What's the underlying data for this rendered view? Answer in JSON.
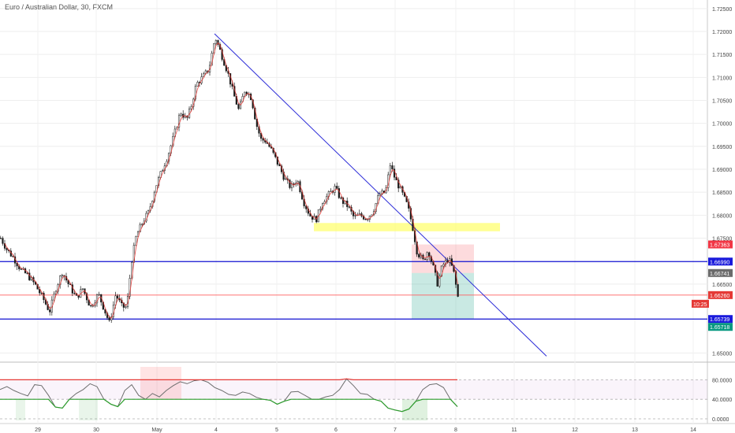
{
  "header": {
    "title": "Euro / Australian Dollar, 30, FXCM"
  },
  "chart_data": {
    "type": "candlestick",
    "symbol": "Euro / Australian Dollar",
    "interval": "30",
    "source": "FXCM",
    "price_axis": {
      "range": [
        1.648,
        1.726
      ],
      "tick_labels": [
        "1.72500",
        "1.72000",
        "1.71500",
        "1.71000",
        "1.70500",
        "1.70000",
        "1.69500",
        "1.69000",
        "1.68500",
        "1.68000",
        "1.67500",
        "1.66500",
        "1.65000"
      ]
    },
    "time_axis": {
      "tick_labels": [
        "29",
        "30",
        "May",
        "4",
        "5",
        "6",
        "7",
        "8",
        "11",
        "12",
        "13",
        "14"
      ]
    },
    "price_path": [
      [
        0,
        1.675
      ],
      [
        8,
        1.6725
      ],
      [
        16,
        1.6708
      ],
      [
        26,
        1.668
      ],
      [
        34,
        1.667
      ],
      [
        44,
        1.6648
      ],
      [
        54,
        1.6618
      ],
      [
        62,
        1.659
      ],
      [
        70,
        1.664
      ],
      [
        78,
        1.6676
      ],
      [
        86,
        1.665
      ],
      [
        96,
        1.662
      ],
      [
        104,
        1.664
      ],
      [
        114,
        1.66
      ],
      [
        124,
        1.6628
      ],
      [
        132,
        1.6592
      ],
      [
        138,
        1.6565
      ],
      [
        146,
        1.6628
      ],
      [
        154,
        1.66
      ],
      [
        160,
        1.66
      ],
      [
        166,
        1.67
      ],
      [
        172,
        1.6755
      ],
      [
        180,
        1.6785
      ],
      [
        188,
        1.6808
      ],
      [
        196,
        1.686
      ],
      [
        204,
        1.6895
      ],
      [
        212,
        1.693
      ],
      [
        220,
        1.6975
      ],
      [
        228,
        1.7025
      ],
      [
        236,
        1.7008
      ],
      [
        242,
        1.704
      ],
      [
        248,
        1.7085
      ],
      [
        256,
        1.71
      ],
      [
        264,
        1.7118
      ],
      [
        272,
        1.7188
      ],
      [
        280,
        1.715
      ],
      [
        288,
        1.711
      ],
      [
        296,
        1.706
      ],
      [
        302,
        1.7028
      ],
      [
        310,
        1.7075
      ],
      [
        318,
        1.7055
      ],
      [
        324,
        1.7
      ],
      [
        330,
        1.6965
      ],
      [
        336,
        1.6962
      ],
      [
        344,
        1.694
      ],
      [
        352,
        1.691
      ],
      [
        360,
        1.688
      ],
      [
        368,
        1.686
      ],
      [
        376,
        1.6878
      ],
      [
        384,
        1.683
      ],
      [
        392,
        1.68
      ],
      [
        400,
        1.679
      ],
      [
        408,
        1.683
      ],
      [
        416,
        1.6845
      ],
      [
        424,
        1.686
      ],
      [
        432,
        1.6832
      ],
      [
        440,
        1.682
      ],
      [
        448,
        1.6795
      ],
      [
        456,
        1.68
      ],
      [
        464,
        1.6793
      ],
      [
        472,
        1.6808
      ],
      [
        480,
        1.6845
      ],
      [
        488,
        1.685
      ],
      [
        494,
        1.691
      ],
      [
        500,
        1.688
      ],
      [
        508,
        1.6852
      ],
      [
        516,
        1.682
      ],
      [
        522,
        1.6778
      ],
      [
        528,
        1.672
      ],
      [
        536,
        1.67
      ],
      [
        542,
        1.6725
      ],
      [
        548,
        1.669
      ],
      [
        554,
        1.665
      ],
      [
        560,
        1.669
      ],
      [
        568,
        1.6705
      ],
      [
        574,
        1.668
      ],
      [
        580,
        1.662
      ]
    ],
    "indicator": {
      "type": "oscillator",
      "range": [
        0,
        100
      ],
      "tick_labels": [
        "80.0000",
        "40.0000",
        "0.0000"
      ],
      "values": [
        60,
        66,
        58,
        52,
        47,
        70,
        68,
        48,
        24,
        22,
        40,
        52,
        60,
        72,
        66,
        40,
        30,
        25,
        58,
        70,
        48,
        40,
        52,
        45,
        58,
        68,
        76,
        72,
        78,
        80,
        75,
        64,
        58,
        50,
        48,
        55,
        52,
        44,
        40,
        38,
        30,
        36,
        55,
        56,
        48,
        40,
        40,
        45,
        48,
        60,
        82,
        68,
        52,
        50,
        40,
        36,
        22,
        18,
        15,
        20,
        36,
        60,
        70,
        72,
        64,
        40,
        25
      ]
    },
    "annotations": [
      {
        "type": "trendline",
        "label": "descending trendline"
      },
      {
        "type": "horizontal-line",
        "price": 1.6699,
        "color": "#1010d0"
      },
      {
        "type": "horizontal-line",
        "price": 1.65739,
        "color": "#1010d0"
      },
      {
        "type": "horizontal-line",
        "price": 1.6626,
        "color": "#ff6060"
      },
      {
        "type": "zone",
        "label": "supply zone",
        "color": "#ffff66"
      },
      {
        "type": "position",
        "entry": 1.66741,
        "stop": 1.67363,
        "target": 1.65739
      }
    ],
    "price_labels": [
      {
        "text": "1.67363",
        "color": "#f23645"
      },
      {
        "text": "1.66990",
        "color": "#1a1adc"
      },
      {
        "text": "1.66741",
        "color": "#6b6b6b"
      },
      {
        "text": "1.66260",
        "color": "#e53935"
      },
      {
        "text": "10:25",
        "color": "#e53935"
      },
      {
        "text": "1.65739",
        "color": "#1a1adc"
      },
      {
        "text": "1.65718",
        "color": "#089981"
      }
    ]
  }
}
